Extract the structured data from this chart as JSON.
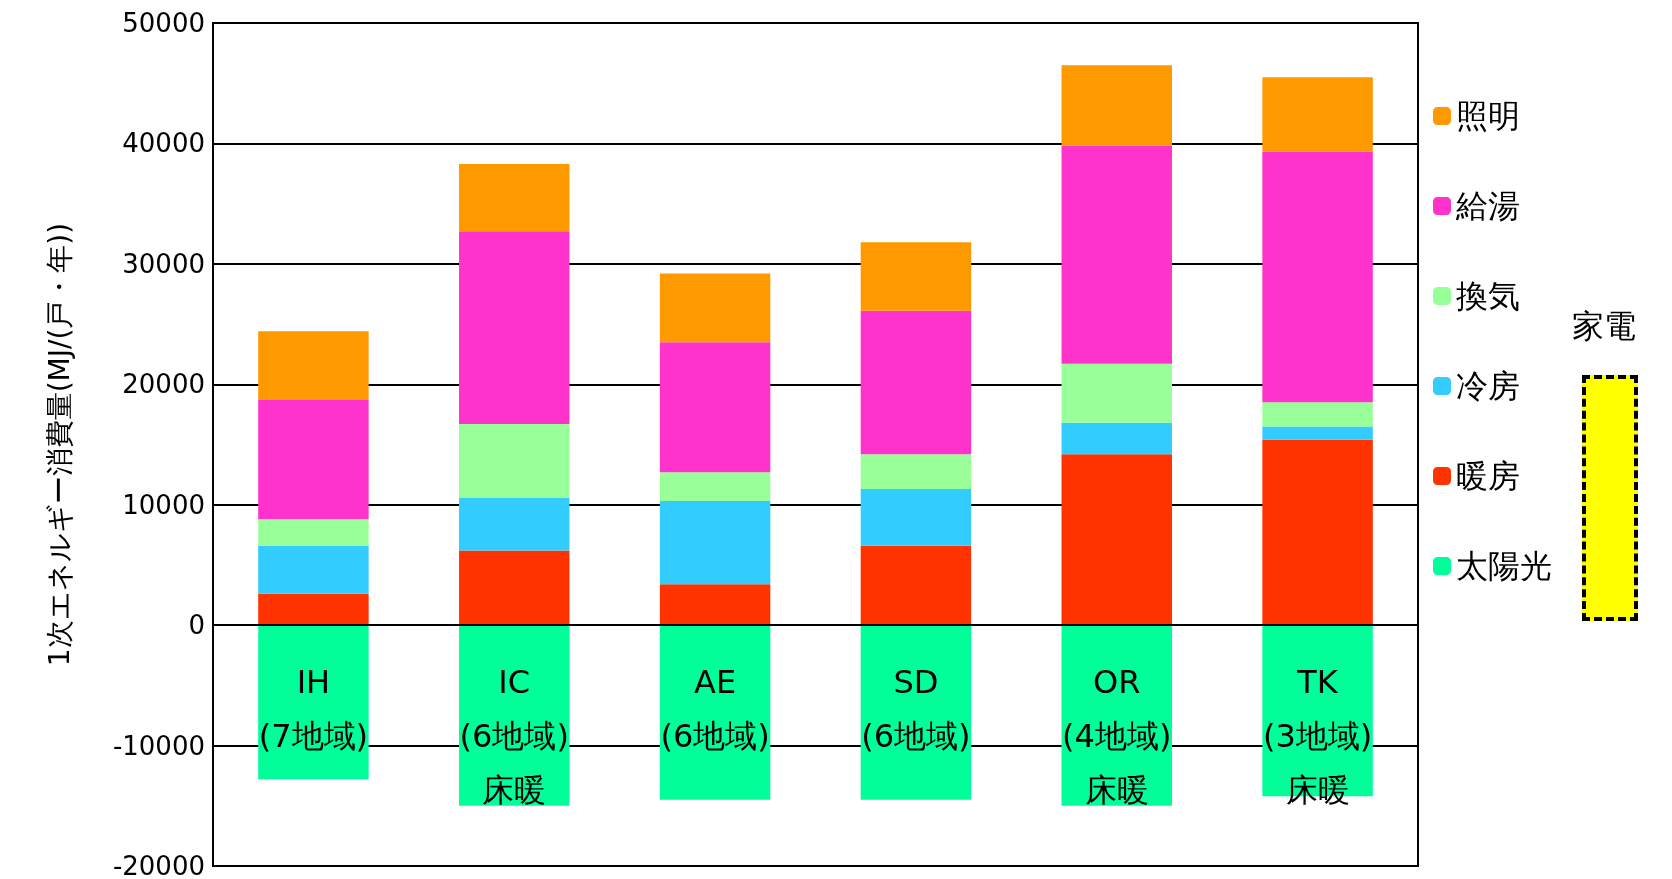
{
  "chart_data": {
    "type": "bar",
    "stacked": true,
    "ylabel": "1次エネルギー消費量(MJ/(戸・年))",
    "categories": [
      "IH\n(7地域)",
      "IC\n(6地域)\n床暖",
      "AE\n(6地域)",
      "SD\n(6地域)",
      "OR\n(4地域)\n床暖",
      "TK\n(3地域)\n床暖"
    ],
    "series": [
      {
        "name": "太陽光",
        "color": "#00ff99",
        "values": [
          -12800,
          -15000,
          -14500,
          -14500,
          -15000,
          -14200
        ]
      },
      {
        "name": "暖房",
        "color": "#ff3300",
        "values": [
          2600,
          6200,
          3400,
          6600,
          14200,
          15400
        ]
      },
      {
        "name": "冷房",
        "color": "#33ccff",
        "values": [
          4000,
          4400,
          6900,
          4700,
          2600,
          1100
        ]
      },
      {
        "name": "換気",
        "color": "#99ff99",
        "values": [
          2200,
          6100,
          2400,
          2900,
          4900,
          2000
        ]
      },
      {
        "name": "給湯",
        "color": "#ff33cc",
        "values": [
          9900,
          16000,
          10800,
          11900,
          18100,
          20800
        ]
      },
      {
        "name": "照明",
        "color": "#ff9900",
        "values": [
          5700,
          5600,
          5700,
          5700,
          6700,
          6200
        ]
      }
    ],
    "ylim": [
      -20000,
      50000
    ],
    "yticks": [
      -20000,
      -10000,
      0,
      10000,
      20000,
      30000,
      40000,
      50000
    ],
    "grid": "y",
    "legend": "right",
    "annotations": [
      "家電"
    ]
  }
}
